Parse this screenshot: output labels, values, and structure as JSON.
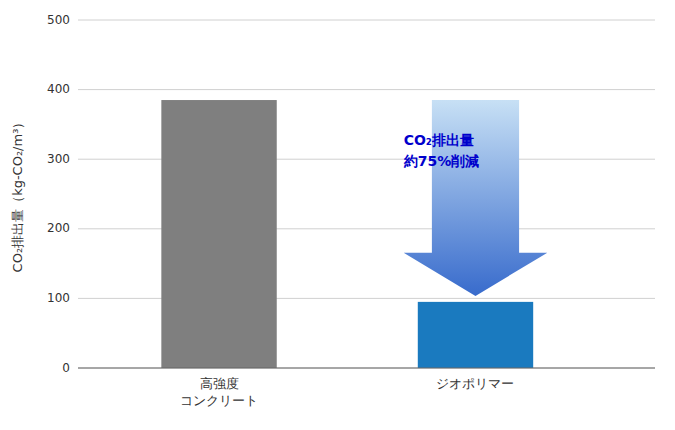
{
  "chart_data": {
    "type": "bar",
    "categories": [
      "高強度\nコンクリート",
      "ジオポリマー"
    ],
    "values": [
      385,
      95
    ],
    "colors": [
      "#7f7f7f",
      "#1a7abf"
    ],
    "ylabel": "CO₂排出量（kg-CO₂/m³）",
    "ylim": [
      0,
      500
    ],
    "yticks": [
      0,
      100,
      200,
      300,
      400,
      500
    ],
    "grid": true,
    "annotations": [
      {
        "text": "CO₂排出量\n約75%削減",
        "color": "#0000cc"
      }
    ]
  }
}
